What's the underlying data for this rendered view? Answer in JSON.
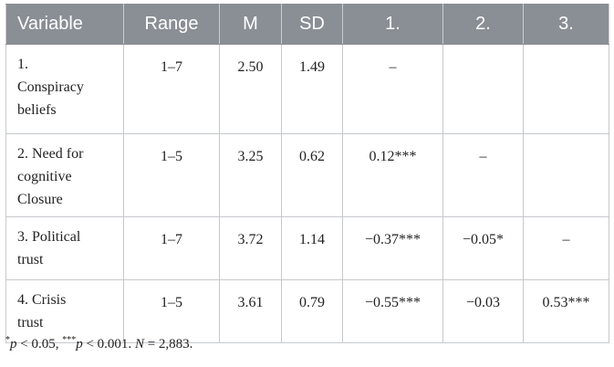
{
  "table": {
    "headers": [
      "Variable",
      "Range",
      "M",
      "SD",
      "1.",
      "2.",
      "3."
    ],
    "rows": [
      {
        "variable_lines": [
          "1.",
          "Conspiracy",
          "beliefs"
        ],
        "range": "1–7",
        "m": "2.50",
        "sd": "1.49",
        "c1": "–",
        "c2": "",
        "c3": ""
      },
      {
        "variable_lines": [
          "2. Need for",
          "cognitive",
          "Closure"
        ],
        "range": "1–5",
        "m": "3.25",
        "sd": "0.62",
        "c1": "0.12***",
        "c2": "–",
        "c3": ""
      },
      {
        "variable_lines": [
          "3. Political",
          "trust"
        ],
        "range": "1–7",
        "m": "3.72",
        "sd": "1.14",
        "c1": "−0.37***",
        "c2": "−0.05*",
        "c3": "–"
      },
      {
        "variable_lines": [
          "4. Crisis",
          "trust"
        ],
        "range": "1–5",
        "m": "3.61",
        "sd": "0.79",
        "c1": "−0.55***",
        "c2": "−0.03",
        "c3": "0.53***"
      }
    ]
  },
  "note": {
    "star1": "*",
    "p1": "p",
    "t1": " < 0.05, ",
    "star3": "***",
    "p2": "p",
    "t2": " < 0.001. ",
    "n": "N",
    "t3": " = 2,883."
  }
}
